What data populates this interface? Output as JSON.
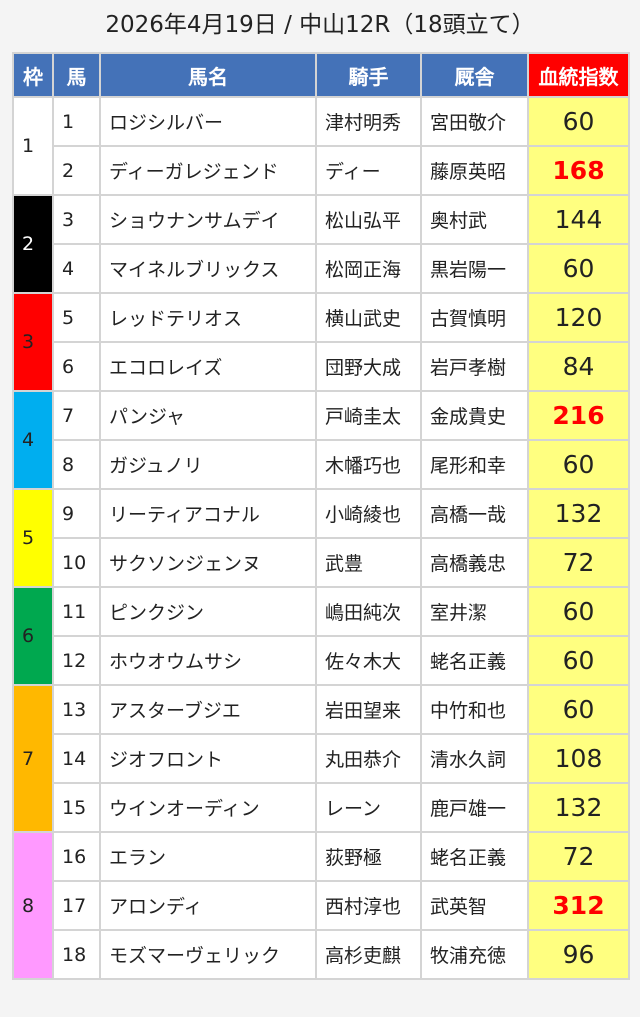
{
  "title": "2026年4月19日 / 中山12R（18頭立て）",
  "headers": {
    "waku": "枠",
    "uma": "馬",
    "name": "馬名",
    "jockey": "騎手",
    "trainer": "厩舎",
    "index": "血統指数"
  },
  "colors": {
    "header": "#4472b8",
    "index_header": "#ff0000",
    "score_bg": "#ffff80",
    "highlight_text": "#ff0000"
  },
  "frames": [
    {
      "number": "1",
      "color": "#ffffff",
      "text_color": "#222222"
    },
    {
      "number": "2",
      "color": "#000000",
      "text_color": "#ffffff"
    },
    {
      "number": "3",
      "color": "#ff0000",
      "text_color": "#222222"
    },
    {
      "number": "4",
      "color": "#00aeef",
      "text_color": "#222222"
    },
    {
      "number": "5",
      "color": "#ffff00",
      "text_color": "#222222"
    },
    {
      "number": "6",
      "color": "#00a84f",
      "text_color": "#222222"
    },
    {
      "number": "7",
      "color": "#ffb800",
      "text_color": "#222222"
    },
    {
      "number": "8",
      "color": "#ff99ff",
      "text_color": "#222222"
    }
  ],
  "rows": [
    {
      "frame": "1",
      "uma": "1",
      "name": "ロジシルバー",
      "jockey": "津村明秀",
      "trainer": "宮田敬介",
      "index": "60",
      "highlight": false
    },
    {
      "frame": "1",
      "uma": "2",
      "name": "ディーガレジェンド",
      "jockey": "ディー",
      "trainer": "藤原英昭",
      "index": "168",
      "highlight": true
    },
    {
      "frame": "2",
      "uma": "3",
      "name": "ショウナンサムデイ",
      "jockey": "松山弘平",
      "trainer": "奥村武",
      "index": "144",
      "highlight": false
    },
    {
      "frame": "2",
      "uma": "4",
      "name": "マイネルブリックス",
      "jockey": "松岡正海",
      "trainer": "黒岩陽一",
      "index": "60",
      "highlight": false
    },
    {
      "frame": "3",
      "uma": "5",
      "name": "レッドテリオス",
      "jockey": "横山武史",
      "trainer": "古賀慎明",
      "index": "120",
      "highlight": false
    },
    {
      "frame": "3",
      "uma": "6",
      "name": "エコロレイズ",
      "jockey": "団野大成",
      "trainer": "岩戸孝樹",
      "index": "84",
      "highlight": false
    },
    {
      "frame": "4",
      "uma": "7",
      "name": "パンジャ",
      "jockey": "戸崎圭太",
      "trainer": "金成貴史",
      "index": "216",
      "highlight": true
    },
    {
      "frame": "4",
      "uma": "8",
      "name": "ガジュノリ",
      "jockey": "木幡巧也",
      "trainer": "尾形和幸",
      "index": "60",
      "highlight": false
    },
    {
      "frame": "5",
      "uma": "9",
      "name": "リーティアコナル",
      "jockey": "小崎綾也",
      "trainer": "高橋一哉",
      "index": "132",
      "highlight": false
    },
    {
      "frame": "5",
      "uma": "10",
      "name": "サクソンジェンヌ",
      "jockey": "武豊",
      "trainer": "高橋義忠",
      "index": "72",
      "highlight": false
    },
    {
      "frame": "6",
      "uma": "11",
      "name": "ピンクジン",
      "jockey": "嶋田純次",
      "trainer": "室井潔",
      "index": "60",
      "highlight": false
    },
    {
      "frame": "6",
      "uma": "12",
      "name": "ホウオウムサシ",
      "jockey": "佐々木大",
      "trainer": "蛯名正義",
      "index": "60",
      "highlight": false
    },
    {
      "frame": "7",
      "uma": "13",
      "name": "アスターブジエ",
      "jockey": "岩田望来",
      "trainer": "中竹和也",
      "index": "60",
      "highlight": false
    },
    {
      "frame": "7",
      "uma": "14",
      "name": "ジオフロント",
      "jockey": "丸田恭介",
      "trainer": "清水久詞",
      "index": "108",
      "highlight": false
    },
    {
      "frame": "7",
      "uma": "15",
      "name": "ウインオーディン",
      "jockey": "レーン",
      "trainer": "鹿戸雄一",
      "index": "132",
      "highlight": false
    },
    {
      "frame": "8",
      "uma": "16",
      "name": "エラン",
      "jockey": "荻野極",
      "trainer": "蛯名正義",
      "index": "72",
      "highlight": false
    },
    {
      "frame": "8",
      "uma": "17",
      "name": "アロンディ",
      "jockey": "西村淳也",
      "trainer": "武英智",
      "index": "312",
      "highlight": true
    },
    {
      "frame": "8",
      "uma": "18",
      "name": "モズマーヴェリック",
      "jockey": "高杉吏麒",
      "trainer": "牧浦充徳",
      "index": "96",
      "highlight": false
    }
  ]
}
